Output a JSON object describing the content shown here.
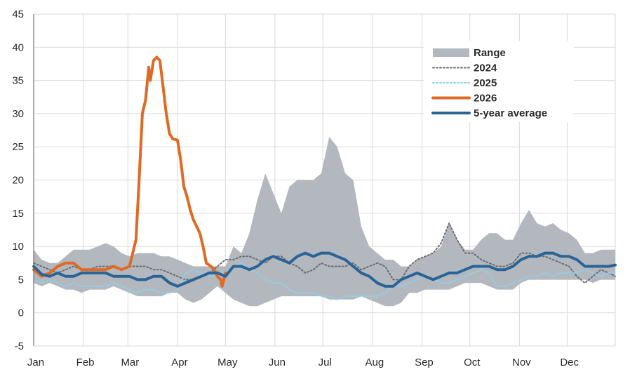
{
  "chart_data": {
    "type": "line",
    "title": "",
    "xlabel": "",
    "ylabel": "",
    "x_unit": "day of year",
    "xlim": [
      1,
      365
    ],
    "ylim": [
      -5,
      45
    ],
    "yticks": [
      -5,
      0,
      5,
      10,
      15,
      20,
      25,
      30,
      35,
      40,
      45
    ],
    "xticks": [
      {
        "label": "Jan",
        "day": 1
      },
      {
        "label": "Feb",
        "day": 32
      },
      {
        "label": "Mar",
        "day": 60
      },
      {
        "label": "Apr",
        "day": 91
      },
      {
        "label": "May",
        "day": 121
      },
      {
        "label": "Jun",
        "day": 152
      },
      {
        "label": "Jul",
        "day": 182
      },
      {
        "label": "Aug",
        "day": 213
      },
      {
        "label": "Sep",
        "day": 244
      },
      {
        "label": "Oct",
        "day": 274
      },
      {
        "label": "Nov",
        "day": 305
      },
      {
        "label": "Dec",
        "day": 335
      }
    ],
    "grid": true,
    "legend_position": "top-right",
    "colors": {
      "range": "#b3b8bf",
      "y2024": "#6b6e73",
      "y2025": "#8fd0ea",
      "y2026": "#e06a24",
      "avg": "#2a6496",
      "grid": "#d9d9d9",
      "axis": "#5a5a5a"
    },
    "legend": [
      {
        "key": "range",
        "label": "Range"
      },
      {
        "key": "y2024",
        "label": "2024"
      },
      {
        "key": "y2025",
        "label": "2025"
      },
      {
        "key": "y2026",
        "label": "2026"
      },
      {
        "key": "avg",
        "label": "5-year average"
      }
    ],
    "range": {
      "name": "Range",
      "x": [
        1,
        6,
        11,
        16,
        21,
        26,
        31,
        36,
        41,
        46,
        51,
        56,
        61,
        66,
        71,
        76,
        81,
        86,
        91,
        96,
        101,
        106,
        111,
        116,
        121,
        126,
        131,
        136,
        141,
        146,
        151,
        156,
        161,
        166,
        171,
        176,
        181,
        186,
        191,
        196,
        201,
        206,
        211,
        216,
        221,
        226,
        231,
        236,
        241,
        246,
        251,
        256,
        261,
        266,
        271,
        276,
        281,
        286,
        291,
        296,
        301,
        306,
        311,
        316,
        321,
        326,
        331,
        336,
        341,
        346,
        351,
        356,
        361,
        365
      ],
      "low": [
        4.5,
        4.0,
        4.5,
        4.0,
        3.5,
        3.5,
        3.0,
        3.5,
        3.5,
        3.5,
        4.0,
        3.5,
        3.0,
        2.5,
        2.5,
        2.5,
        2.5,
        3.0,
        3.0,
        2.0,
        1.5,
        2.0,
        3.0,
        4.0,
        3.0,
        2.0,
        1.5,
        1.0,
        1.0,
        1.5,
        2.0,
        2.5,
        2.5,
        2.5,
        2.5,
        2.5,
        2.5,
        2.0,
        2.0,
        2.0,
        2.0,
        2.5,
        2.0,
        1.5,
        1.0,
        1.0,
        1.5,
        3.0,
        3.0,
        3.5,
        3.5,
        3.5,
        3.5,
        4.0,
        4.5,
        4.5,
        4.5,
        4.0,
        3.5,
        3.5,
        3.5,
        4.5,
        5.0,
        5.0,
        5.0,
        5.0,
        5.0,
        5.0,
        5.0,
        5.0,
        4.5,
        5.0,
        5.0,
        5.0
      ],
      "high": [
        9.5,
        8.0,
        7.5,
        7.5,
        8.5,
        9.5,
        9.5,
        9.5,
        10.0,
        10.5,
        10.0,
        9.0,
        8.5,
        9.0,
        9.0,
        9.0,
        8.5,
        8.5,
        8.0,
        7.5,
        7.0,
        7.0,
        7.0,
        7.0,
        7.0,
        10.0,
        9.0,
        12.0,
        17.0,
        21.0,
        18.0,
        15.0,
        19.0,
        20.0,
        20.0,
        20.0,
        21.0,
        26.5,
        25.0,
        21.0,
        20.0,
        13.0,
        10.0,
        9.0,
        8.0,
        8.0,
        7.0,
        7.0,
        8.0,
        8.5,
        9.0,
        10.0,
        13.5,
        11.0,
        9.5,
        9.5,
        11.0,
        12.0,
        12.0,
        11.0,
        11.0,
        13.5,
        15.5,
        13.5,
        13.0,
        13.5,
        12.5,
        12.0,
        11.0,
        9.0,
        9.0,
        9.5,
        9.5,
        9.5
      ]
    },
    "series": [
      {
        "key": "y2024",
        "name": "2024",
        "x": [
          1,
          6,
          11,
          16,
          21,
          26,
          31,
          36,
          41,
          46,
          51,
          56,
          61,
          66,
          71,
          76,
          81,
          86,
          91,
          96,
          101,
          106,
          111,
          116,
          121,
          126,
          131,
          136,
          141,
          146,
          151,
          156,
          161,
          166,
          171,
          176,
          181,
          186,
          191,
          196,
          201,
          206,
          211,
          216,
          221,
          226,
          231,
          236,
          241,
          246,
          251,
          256,
          261,
          266,
          271,
          276,
          281,
          286,
          291,
          296,
          301,
          306,
          311,
          316,
          321,
          326,
          331,
          336,
          341,
          346,
          351,
          356,
          361,
          365
        ],
        "values": [
          7.5,
          7.0,
          6.5,
          6.0,
          6.5,
          7.0,
          6.5,
          6.5,
          7.0,
          7.0,
          7.0,
          6.5,
          7.0,
          7.0,
          7.0,
          6.5,
          6.5,
          6.0,
          5.5,
          5.0,
          5.0,
          5.5,
          6.0,
          7.0,
          8.0,
          8.0,
          8.5,
          8.5,
          8.0,
          7.5,
          8.5,
          8.5,
          7.5,
          7.0,
          6.0,
          6.5,
          7.5,
          7.0,
          7.0,
          7.0,
          7.5,
          6.5,
          7.0,
          7.5,
          7.0,
          5.0,
          5.0,
          7.0,
          8.0,
          8.5,
          9.0,
          10.5,
          13.5,
          11.0,
          9.0,
          9.0,
          8.0,
          7.5,
          7.0,
          7.0,
          7.5,
          9.0,
          9.0,
          8.5,
          8.5,
          8.0,
          7.5,
          7.0,
          5.5,
          4.5,
          5.5,
          6.5,
          6.0,
          5.5
        ]
      },
      {
        "key": "y2025",
        "name": "2025",
        "x": [
          1,
          6,
          11,
          16,
          21,
          26,
          31,
          36,
          41,
          46,
          51,
          56,
          61,
          66,
          71,
          76,
          81,
          86,
          91,
          96,
          101,
          106,
          111,
          116,
          121,
          126,
          131,
          136,
          141,
          146,
          151,
          156,
          161,
          166,
          171,
          176,
          181,
          186,
          191,
          196,
          201,
          206,
          211,
          216,
          221,
          226,
          231,
          236,
          241,
          246,
          251,
          256,
          261,
          266,
          271,
          276,
          281,
          286,
          291,
          296,
          301,
          306,
          311,
          316,
          321,
          326,
          331,
          336,
          341,
          346,
          351,
          356,
          361,
          365
        ],
        "values": [
          5.0,
          4.5,
          5.0,
          4.5,
          4.0,
          4.5,
          4.0,
          4.0,
          4.0,
          4.0,
          4.5,
          4.0,
          3.5,
          3.0,
          3.5,
          3.5,
          3.0,
          3.0,
          3.5,
          6.0,
          6.5,
          6.0,
          5.5,
          5.5,
          6.0,
          7.0,
          7.5,
          6.5,
          6.0,
          5.0,
          4.5,
          4.5,
          3.5,
          3.0,
          3.0,
          3.0,
          2.5,
          2.5,
          2.0,
          2.5,
          2.5,
          2.5,
          2.5,
          2.5,
          3.0,
          4.0,
          4.0,
          4.5,
          5.0,
          5.5,
          5.0,
          4.5,
          4.5,
          5.0,
          5.5,
          6.0,
          6.5,
          6.0,
          4.0,
          4.0,
          4.5,
          5.0,
          5.5,
          5.5,
          6.0,
          5.5,
          6.0,
          6.0,
          6.0,
          6.5,
          6.0,
          5.5,
          6.0,
          6.0
        ]
      },
      {
        "key": "y2026",
        "name": "2026",
        "x": [
          1,
          6,
          11,
          16,
          21,
          26,
          31,
          36,
          41,
          46,
          51,
          56,
          61,
          63,
          65,
          67,
          69,
          71,
          73,
          74,
          75,
          76,
          78,
          80,
          82,
          84,
          86,
          88,
          91,
          93,
          95,
          97,
          99,
          101,
          103,
          105,
          107,
          109,
          112,
          114,
          116,
          118,
          119,
          121
        ],
        "values": [
          6.5,
          5.5,
          6.0,
          7.0,
          7.5,
          7.5,
          6.5,
          6.5,
          6.5,
          6.5,
          7.0,
          6.5,
          7.0,
          9.0,
          11.0,
          20.0,
          30.0,
          32.0,
          37.0,
          35.0,
          36.5,
          38.0,
          38.5,
          38.0,
          34.0,
          30.0,
          27.0,
          26.2,
          26.0,
          23.0,
          19.0,
          17.5,
          15.5,
          14.0,
          13.0,
          12.0,
          10.0,
          7.5,
          7.0,
          6.5,
          5.5,
          5.0,
          4.0,
          6.0
        ]
      },
      {
        "key": "avg",
        "name": "5-year average",
        "x": [
          1,
          6,
          11,
          16,
          21,
          26,
          31,
          36,
          41,
          46,
          51,
          56,
          61,
          66,
          71,
          76,
          81,
          86,
          91,
          96,
          101,
          106,
          111,
          116,
          121,
          126,
          131,
          136,
          141,
          146,
          151,
          156,
          161,
          166,
          171,
          176,
          181,
          186,
          191,
          196,
          201,
          206,
          211,
          216,
          221,
          226,
          231,
          236,
          241,
          246,
          251,
          256,
          261,
          266,
          271,
          276,
          281,
          286,
          291,
          296,
          301,
          306,
          311,
          316,
          321,
          326,
          331,
          336,
          341,
          346,
          351,
          356,
          361,
          365
        ],
        "values": [
          7.0,
          5.8,
          5.5,
          6.0,
          5.5,
          5.5,
          6.0,
          6.0,
          6.0,
          6.0,
          5.5,
          5.5,
          5.5,
          5.0,
          5.0,
          5.5,
          5.5,
          4.5,
          4.0,
          4.5,
          5.0,
          5.5,
          6.0,
          6.0,
          5.5,
          7.0,
          7.0,
          6.5,
          7.0,
          8.0,
          8.5,
          8.0,
          7.5,
          8.5,
          9.0,
          8.5,
          9.0,
          9.0,
          8.5,
          8.0,
          7.0,
          6.0,
          5.5,
          4.5,
          4.0,
          4.0,
          5.0,
          5.5,
          6.0,
          5.5,
          5.0,
          5.5,
          6.0,
          6.0,
          6.5,
          7.0,
          7.0,
          7.0,
          6.5,
          6.5,
          7.0,
          8.0,
          8.5,
          8.5,
          9.0,
          9.0,
          8.5,
          8.5,
          8.0,
          7.0,
          7.0,
          7.0,
          7.0,
          7.2
        ]
      }
    ]
  }
}
